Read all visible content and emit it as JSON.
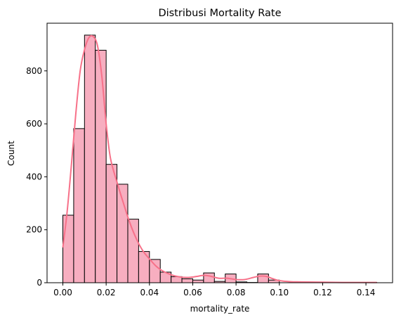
{
  "chart_data": {
    "type": "histogram",
    "title": "Distribusi Mortality Rate",
    "xlabel": "mortality_rate",
    "ylabel": "Count",
    "xlim": [
      -0.0073,
      0.1523
    ],
    "ylim": [
      0,
      980
    ],
    "xticks": [
      "0.00",
      "0.02",
      "0.04",
      "0.06",
      "0.08",
      "0.10",
      "0.12",
      "0.14"
    ],
    "yticks": [
      "0",
      "200",
      "400",
      "600",
      "800"
    ],
    "bin_edges": [
      0.0,
      0.005,
      0.01,
      0.015,
      0.02,
      0.025,
      0.03,
      0.035,
      0.04,
      0.045,
      0.05,
      0.055,
      0.06,
      0.065,
      0.07,
      0.075,
      0.08,
      0.085,
      0.09,
      0.095,
      0.1,
      0.105,
      0.11,
      0.115,
      0.12,
      0.125,
      0.13,
      0.135,
      0.14,
      0.145
    ],
    "counts": [
      255,
      582,
      935,
      878,
      447,
      372,
      240,
      118,
      88,
      40,
      23,
      15,
      10,
      37,
      5,
      33,
      3,
      1,
      33,
      10,
      0,
      0,
      1,
      1,
      1,
      0,
      0,
      0,
      1
    ],
    "kde": {
      "x": [
        0.0,
        0.002,
        0.004,
        0.006,
        0.008,
        0.01,
        0.012,
        0.014,
        0.016,
        0.018,
        0.02,
        0.022,
        0.025,
        0.028,
        0.031,
        0.034,
        0.037,
        0.04,
        0.043,
        0.046,
        0.05,
        0.054,
        0.058,
        0.062,
        0.065,
        0.068,
        0.072,
        0.076,
        0.08,
        0.084,
        0.088,
        0.091,
        0.094,
        0.097,
        0.1,
        0.105,
        0.11,
        0.12,
        0.13,
        0.14,
        0.145
      ],
      "y": [
        133,
        270,
        450,
        640,
        800,
        880,
        925,
        930,
        895,
        780,
        600,
        470,
        380,
        300,
        225,
        165,
        120,
        90,
        63,
        45,
        30,
        22,
        20,
        24,
        28,
        25,
        17,
        17,
        12,
        12,
        20,
        25,
        24,
        15,
        8,
        4,
        3,
        2,
        1,
        1,
        1
      ]
    },
    "bar_fill": "#f7aec0",
    "bar_edge": "#000000",
    "kde_color": "#f77189",
    "grid": false,
    "legend": "none"
  }
}
